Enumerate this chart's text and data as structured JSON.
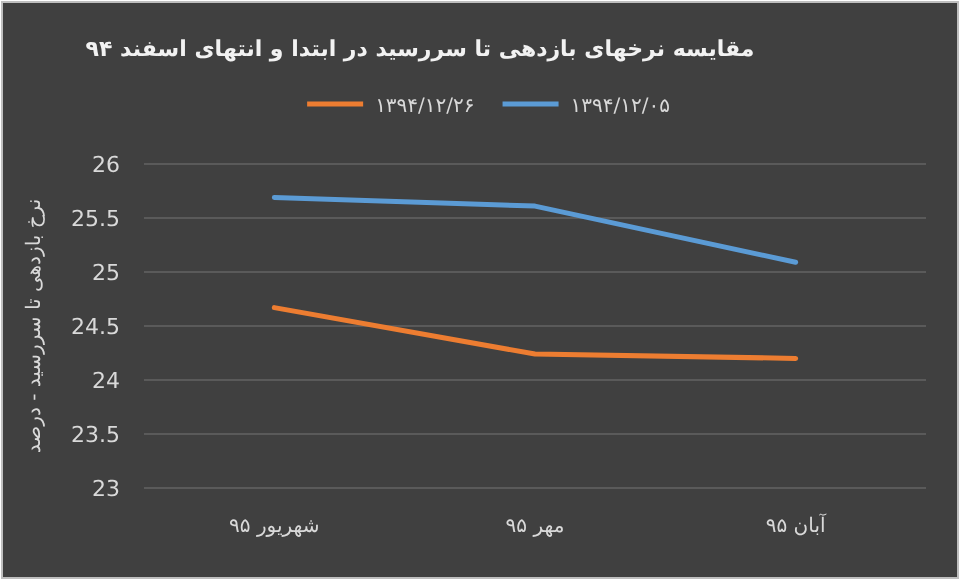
{
  "chart_data": {
    "type": "line",
    "title": "مقایسه نرخهای بازدهی تا سررسید در ابتدا و انتهای اسفند ۹۴",
    "ylabel": "نرخ بازدهی تا سررسید - درصد",
    "categories": [
      "شهریور ۹۵",
      "مهر ۹۵",
      "آبان ۹۵"
    ],
    "series": [
      {
        "name": "۱۳۹۴/۱۲/۰۵",
        "color": "#5b9bd5",
        "values": [
          25.69,
          25.61,
          25.09
        ]
      },
      {
        "name": "۱۳۹۴/۱۲/۲۶",
        "color": "#ed7d31",
        "values": [
          24.67,
          24.24,
          24.2
        ]
      }
    ],
    "ylim": [
      23,
      26
    ],
    "yticks": [
      23,
      23.5,
      24,
      24.5,
      25,
      25.5,
      26
    ],
    "grid": "y",
    "legend": "top",
    "marker": "none",
    "line_style": "solid"
  }
}
